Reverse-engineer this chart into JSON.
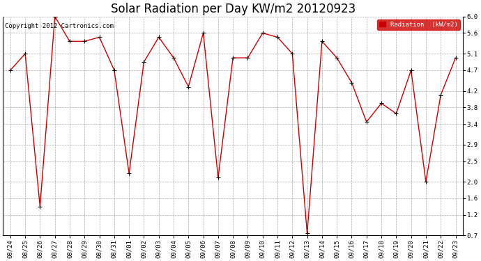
{
  "title": "Solar Radiation per Day KW/m2 20120923",
  "dates": [
    "08/24",
    "08/25",
    "08/26",
    "08/27",
    "08/28",
    "08/29",
    "08/30",
    "08/31",
    "09/01",
    "09/02",
    "09/03",
    "09/04",
    "09/05",
    "09/06",
    "09/07",
    "09/08",
    "09/09",
    "09/10",
    "09/11",
    "09/12",
    "09/13",
    "09/14",
    "09/15",
    "09/16",
    "09/17",
    "09/18",
    "09/19",
    "09/20",
    "09/21",
    "09/22",
    "09/23"
  ],
  "values": [
    4.7,
    5.1,
    1.4,
    6.0,
    5.4,
    5.4,
    5.5,
    4.7,
    2.2,
    4.9,
    5.5,
    5.0,
    4.3,
    5.6,
    2.1,
    5.0,
    5.0,
    5.6,
    5.5,
    5.1,
    0.75,
    5.4,
    5.0,
    4.4,
    3.45,
    3.9,
    3.65,
    4.7,
    2.0,
    4.1,
    5.0
  ],
  "line_color": "#cc0000",
  "marker_color": "#000000",
  "legend_label": "Radiation  (kW/m2)",
  "legend_bg": "#cc0000",
  "legend_text_color": "#ffffff",
  "copyright_text": "Copyright 2012 Cartronics.com",
  "ylim": [
    0.7,
    6.0
  ],
  "yticks": [
    0.7,
    1.2,
    1.6,
    2.0,
    2.5,
    2.9,
    3.4,
    3.8,
    4.2,
    4.7,
    5.1,
    5.6,
    6.0
  ],
  "bg_color": "#ffffff",
  "grid_color": "#aaaaaa",
  "title_fontsize": 12,
  "tick_fontsize": 6.5,
  "copyright_fontsize": 6.5
}
